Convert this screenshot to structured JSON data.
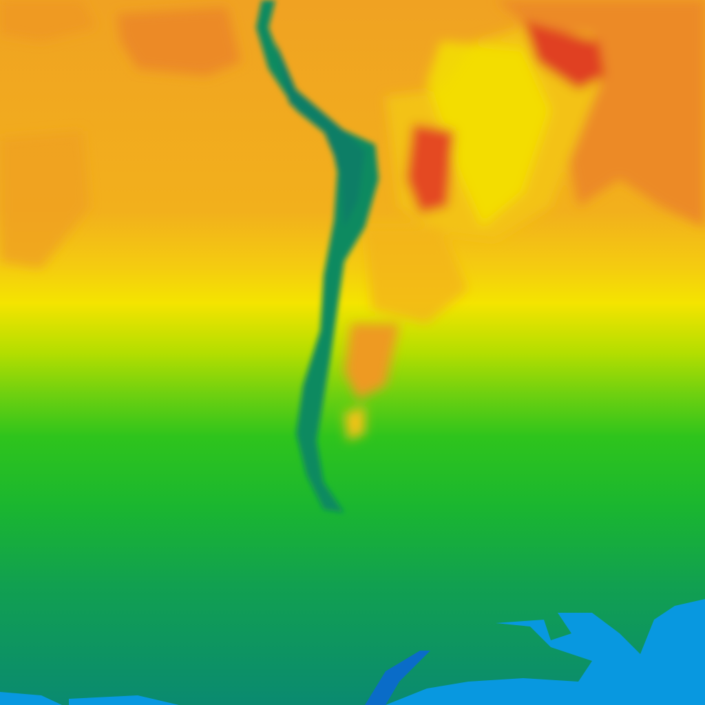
{
  "map": {
    "type": "color-shaded field map",
    "colors": {
      "hot_red": "#e03020",
      "orange": "#ee8a22",
      "light_orange": "#f2aa1e",
      "yellow": "#f6e200",
      "yellow_green": "#a8dc00",
      "green": "#22c020",
      "teal_green": "#0e9a55",
      "deep_teal": "#0a8a70",
      "ice_blue": "#0898e0",
      "mountain_teal": "#108a60"
    }
  }
}
